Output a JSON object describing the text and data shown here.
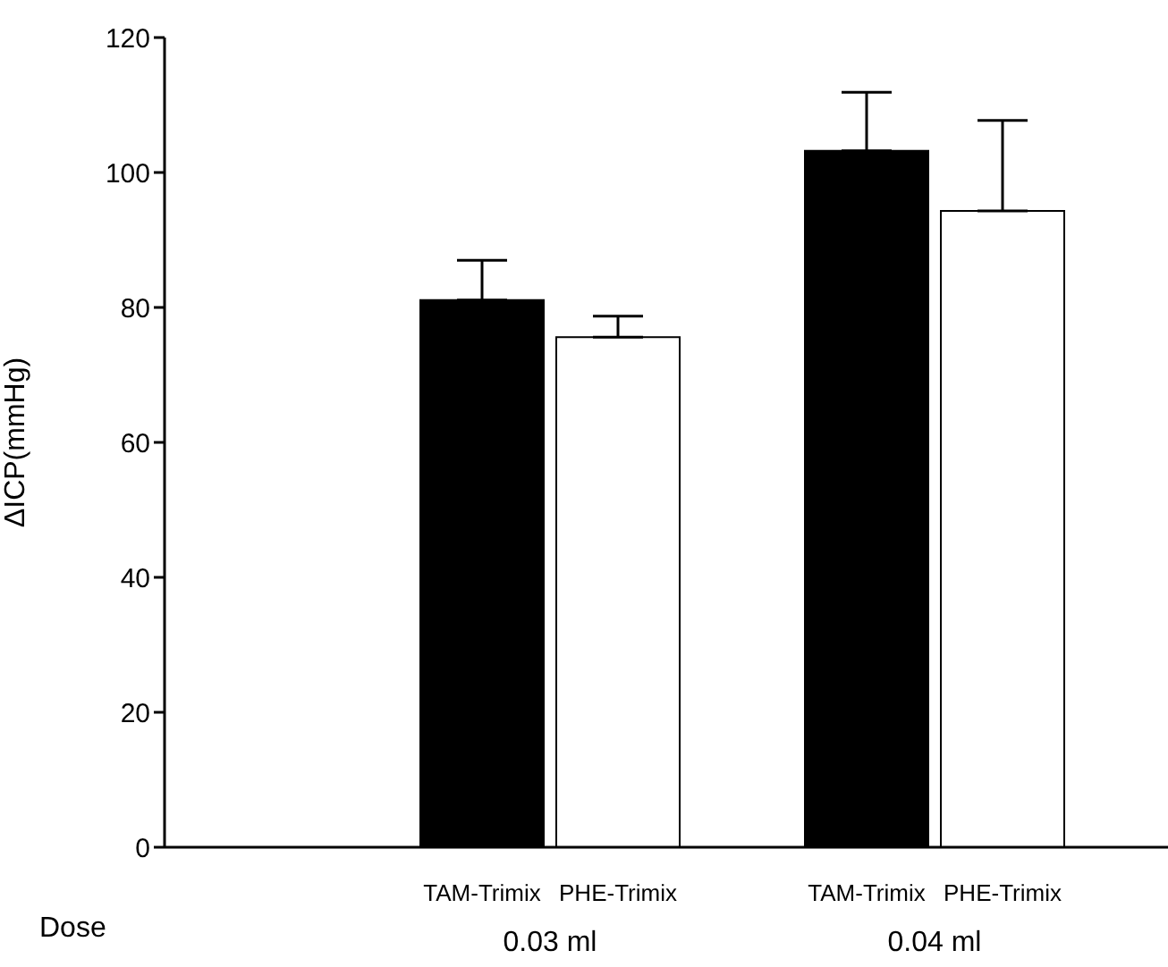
{
  "chart_data": {
    "type": "bar",
    "ylabel": "ΔICP(mmHg)",
    "xlabel": "Dose",
    "categories": [
      "0.03 ml",
      "0.04 ml"
    ],
    "series": [
      {
        "name": "TAM-Trimix",
        "color": "#000000",
        "values": [
          81.1,
          103.2
        ],
        "errors": [
          [
            81.1,
            87.0
          ],
          [
            103.2,
            111.9
          ]
        ]
      },
      {
        "name": "PHE-Trimix",
        "color": "#ffffff",
        "values": [
          75.6,
          94.3
        ],
        "errors": [
          [
            75.6,
            78.7
          ],
          [
            94.3,
            107.7
          ]
        ]
      }
    ],
    "ylim": [
      0,
      120
    ],
    "yticks": [
      0,
      20,
      40,
      60,
      80,
      100,
      120
    ],
    "grid": false,
    "legend": false
  }
}
